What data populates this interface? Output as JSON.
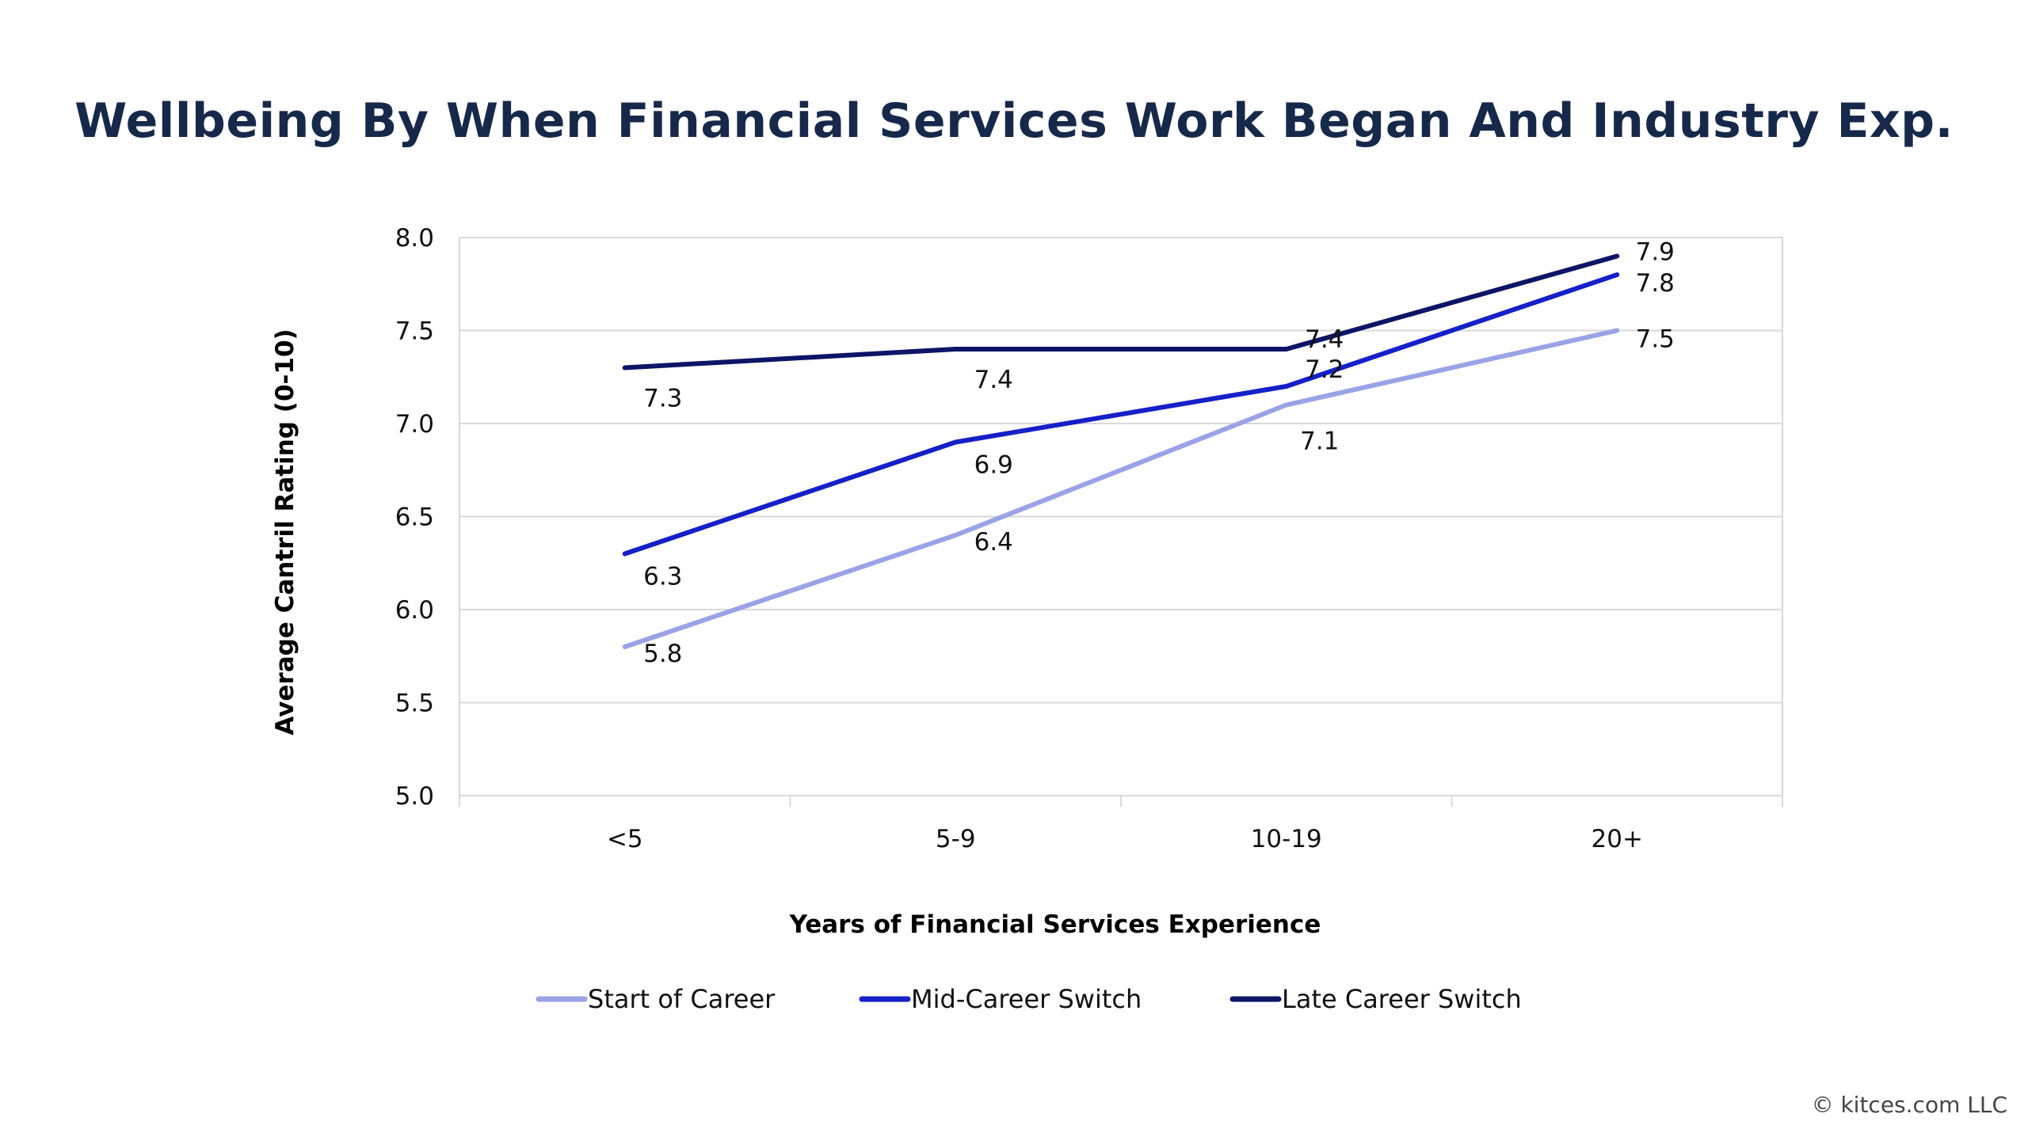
{
  "copyright": "© kitces.com LLC",
  "chart_data": {
    "type": "line",
    "title": "Wellbeing By When Financial Services Work Began And Industry Exp.",
    "xlabel": "Years of Financial Services Experience",
    "ylabel": "Average Cantril Rating (0-10)",
    "categories": [
      "<5",
      "5-9",
      "10-19",
      "20+"
    ],
    "ylim": [
      5.0,
      8.0
    ],
    "yticks": [
      "5.0",
      "5.5",
      "6.0",
      "6.5",
      "7.0",
      "7.5",
      "8.0"
    ],
    "grid": true,
    "legend_position": "bottom",
    "series": [
      {
        "name": "Start of Career",
        "color": "#9aa3e6",
        "values": [
          5.8,
          6.4,
          7.1,
          7.5
        ],
        "labels": [
          "5.8",
          "6.4",
          "7.1",
          "7.5"
        ]
      },
      {
        "name": "Mid-Career Switch",
        "color": "#1520c8",
        "values": [
          6.3,
          6.9,
          7.2,
          7.8
        ],
        "labels": [
          "6.3",
          "6.9",
          "7.2",
          "7.8"
        ]
      },
      {
        "name": "Late Career Switch",
        "color": "#0d1566",
        "values": [
          7.3,
          7.4,
          7.4,
          7.9
        ],
        "labels": [
          "7.3",
          "7.4",
          "7.4",
          "7.9"
        ]
      }
    ]
  }
}
